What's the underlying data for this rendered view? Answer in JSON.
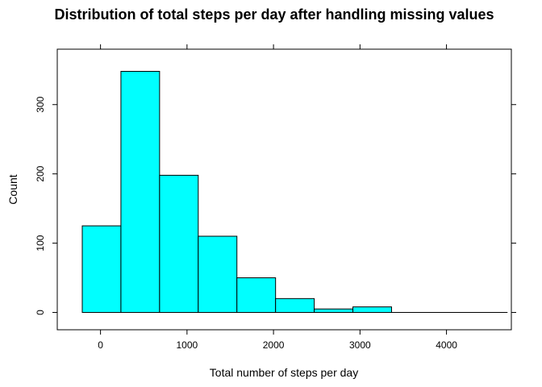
{
  "chart_data": {
    "type": "bar",
    "title": "Distribution of total steps per day after handling missing values",
    "xlabel": "Total number of steps per day",
    "ylabel": "Count",
    "bin_edges": [
      -211,
      236,
      683,
      1130,
      1577,
      2024,
      2471,
      2918,
      3365,
      3812,
      4259,
      4706
    ],
    "values": [
      125,
      348,
      198,
      110,
      50,
      20,
      5,
      8,
      0,
      0,
      0
    ],
    "x_ticks": [
      0,
      1000,
      2000,
      3000,
      4000
    ],
    "y_ticks": [
      0,
      100,
      200,
      300
    ],
    "xlim": [
      -500,
      4750
    ],
    "ylim": [
      -25,
      380
    ],
    "grid": false,
    "bar_color": "#00FFFF",
    "edge_color": "#000000"
  }
}
